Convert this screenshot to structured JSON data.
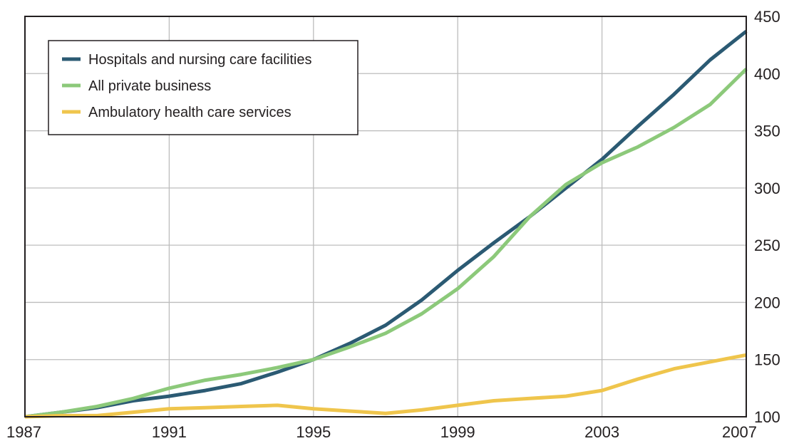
{
  "chart_data": {
    "type": "line",
    "title": "",
    "xlabel": "",
    "ylabel": "",
    "xlim": [
      1987,
      2007
    ],
    "ylim": [
      100,
      450
    ],
    "x_ticks": [
      "1987",
      "1991",
      "1995",
      "1999",
      "2003",
      "2007"
    ],
    "y_ticks": [
      "100",
      "150",
      "200",
      "250",
      "300",
      "350",
      "400",
      "450"
    ],
    "y_axis_side": "right",
    "grid": true,
    "legend_position": "top-left",
    "x": [
      1987,
      1988,
      1989,
      1990,
      1991,
      1992,
      1993,
      1994,
      1995,
      1996,
      1997,
      1998,
      1999,
      2000,
      2001,
      2002,
      2003,
      2004,
      2005,
      2006,
      2007
    ],
    "series": [
      {
        "name": "Hospitals and nursing care facilities",
        "color": "#2b5a73",
        "values": [
          100,
          104,
          108,
          114,
          118,
          123,
          129,
          139,
          150,
          164,
          180,
          202,
          228,
          252,
          275,
          300,
          325,
          354,
          382,
          412,
          437
        ]
      },
      {
        "name": "All private business",
        "color": "#8cc97a",
        "values": [
          100,
          104,
          109,
          116,
          125,
          132,
          137,
          143,
          150,
          161,
          173,
          190,
          212,
          240,
          275,
          303,
          322,
          336,
          353,
          373,
          404
        ]
      },
      {
        "name": "Ambulatory health care services",
        "color": "#efc54c",
        "values": [
          100,
          101,
          101,
          104,
          107,
          108,
          109,
          110,
          107,
          105,
          103,
          106,
          110,
          114,
          116,
          118,
          123,
          133,
          142,
          148,
          154
        ]
      }
    ]
  }
}
